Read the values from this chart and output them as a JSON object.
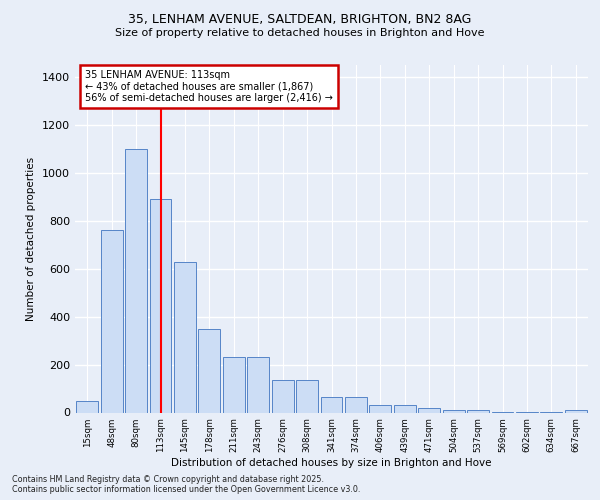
{
  "title": "35, LENHAM AVENUE, SALTDEAN, BRIGHTON, BN2 8AG",
  "subtitle": "Size of property relative to detached houses in Brighton and Hove",
  "xlabel": "Distribution of detached houses by size in Brighton and Hove",
  "ylabel": "Number of detached properties",
  "categories": [
    "15sqm",
    "48sqm",
    "80sqm",
    "113sqm",
    "145sqm",
    "178sqm",
    "211sqm",
    "243sqm",
    "276sqm",
    "308sqm",
    "341sqm",
    "374sqm",
    "406sqm",
    "439sqm",
    "471sqm",
    "504sqm",
    "537sqm",
    "569sqm",
    "602sqm",
    "634sqm",
    "667sqm"
  ],
  "values": [
    48,
    760,
    1100,
    890,
    630,
    348,
    232,
    232,
    135,
    135,
    63,
    63,
    30,
    30,
    18,
    12,
    11,
    2,
    2,
    1,
    12
  ],
  "bar_color": "#ccddf5",
  "bar_edge_color": "#5585c8",
  "redline_index": 3,
  "redline_label": "35 LENHAM AVENUE: 113sqm",
  "annotation_line1": "← 43% of detached houses are smaller (1,867)",
  "annotation_line2": "56% of semi-detached houses are larger (2,416) →",
  "ylim": [
    0,
    1450
  ],
  "yticks": [
    0,
    200,
    400,
    600,
    800,
    1000,
    1200,
    1400
  ],
  "footer": "Contains HM Land Registry data © Crown copyright and database right 2025.\nContains public sector information licensed under the Open Government Licence v3.0.",
  "background_color": "#e8eef8",
  "axes_bg_color": "#e8eef8",
  "grid_color": "#ffffff",
  "annotation_box_color": "#cc0000"
}
